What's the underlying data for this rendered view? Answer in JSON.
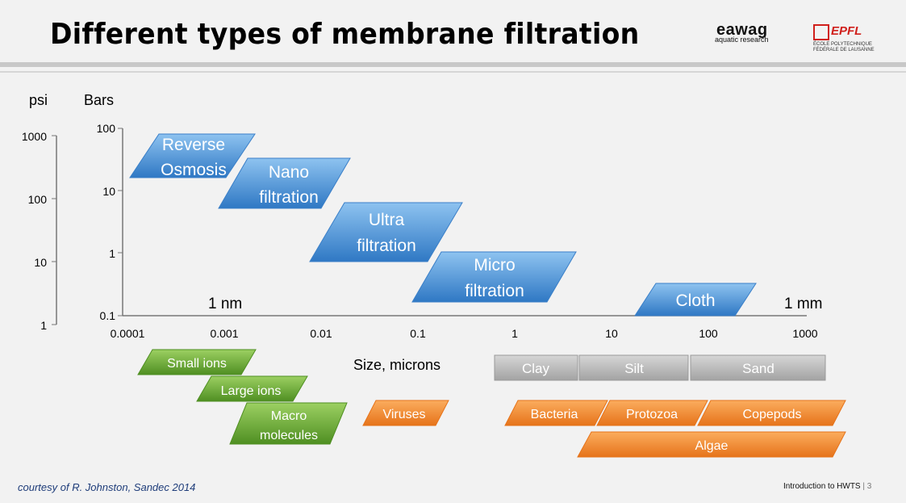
{
  "header": {
    "title": "Different types of membrane filtration",
    "eawag_name": "eawag",
    "eawag_sub": "aquatic research",
    "epfl_name": "EPFL",
    "epfl_sub_1": "ÉCOLE POLYTECHNIQUE",
    "epfl_sub_2": "FÉDÉRALE DE LAUSANNE"
  },
  "axes": {
    "psi_label": "psi",
    "bars_label": "Bars",
    "psi_ticks": [
      "1000",
      "100",
      "10",
      "1"
    ],
    "bar_ticks": [
      "100",
      "10",
      "1",
      "0.1"
    ],
    "x_ticks": [
      "0.0001",
      "0.001",
      "0.01",
      "0.1",
      "1",
      "10",
      "100",
      "1000"
    ],
    "x_label": "Size, microns",
    "nm_label": "1 nm",
    "mm_label": "1 mm"
  },
  "processes": [
    {
      "line1": "Reverse",
      "line2": "Osmosis"
    },
    {
      "line1": "Nano",
      "line2": "filtration"
    },
    {
      "line1": "Ultra",
      "line2": "filtration"
    },
    {
      "line1": "Micro",
      "line2": "filtration"
    },
    {
      "line1": "Cloth",
      "line2": ""
    }
  ],
  "green_items": [
    {
      "line1": "Small ions",
      "line2": ""
    },
    {
      "line1": "Large ions",
      "line2": ""
    },
    {
      "line1": "Macro",
      "line2": "molecules"
    }
  ],
  "gray_items": [
    "Clay",
    "Silt",
    "Sand"
  ],
  "orange_items": [
    "Viruses",
    "Bacteria",
    "Protozoa",
    "Copepods",
    "Algae"
  ],
  "colors": {
    "blue": "#5a9fdc",
    "green": "#6fae3a",
    "gray": "#b8b8b8",
    "orange": "#f08a30"
  },
  "footer": {
    "credit": "courtesy of R. Johnston, Sandec 2014",
    "course": "Introduction to HWTS",
    "page": "3"
  }
}
